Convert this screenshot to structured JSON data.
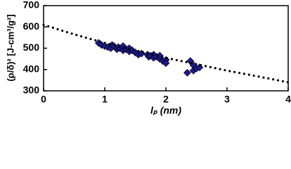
{
  "chart_data": {
    "type": "scatter",
    "x_label": "lₚ (nm)",
    "y_label": "(ρ/δ)² [J-cm³/g²]",
    "xlim": [
      0,
      4
    ],
    "xticks": [
      0,
      1,
      2,
      3,
      4
    ],
    "ylim": [
      300,
      700
    ],
    "yticks": [
      300,
      400,
      500,
      600,
      700
    ],
    "grid": false,
    "series": [
      {
        "color": "#1a1a8c",
        "marker": "diamond",
        "x": [
          0.9,
          0.95,
          1.0,
          1.05,
          1.1,
          1.12,
          1.15,
          1.2,
          1.22,
          1.25,
          1.3,
          1.3,
          1.35,
          1.4,
          1.4,
          1.45,
          1.5,
          1.55,
          1.6,
          1.7,
          1.72,
          1.75,
          1.8,
          1.8,
          1.85,
          1.9,
          1.9,
          1.95,
          2.0,
          2.0,
          2.35,
          2.4,
          2.45,
          2.45,
          2.5,
          2.55
        ],
        "values": [
          525,
          515,
          510,
          505,
          500,
          515,
          510,
          495,
          505,
          500,
          490,
          510,
          495,
          485,
          500,
          490,
          480,
          470,
          475,
          470,
          460,
          465,
          455,
          470,
          460,
          450,
          465,
          440,
          445,
          430,
          385,
          440,
          420,
          395,
          405,
          410
        ]
      },
      {
        "color": "#000000",
        "marker": "dotted-line",
        "x": [
          0,
          0.5,
          1,
          1.5,
          2,
          2.5,
          3,
          3.5,
          4
        ],
        "values": [
          610,
          565,
          525,
          490,
          455,
          425,
          395,
          368,
          340
        ]
      }
    ]
  }
}
